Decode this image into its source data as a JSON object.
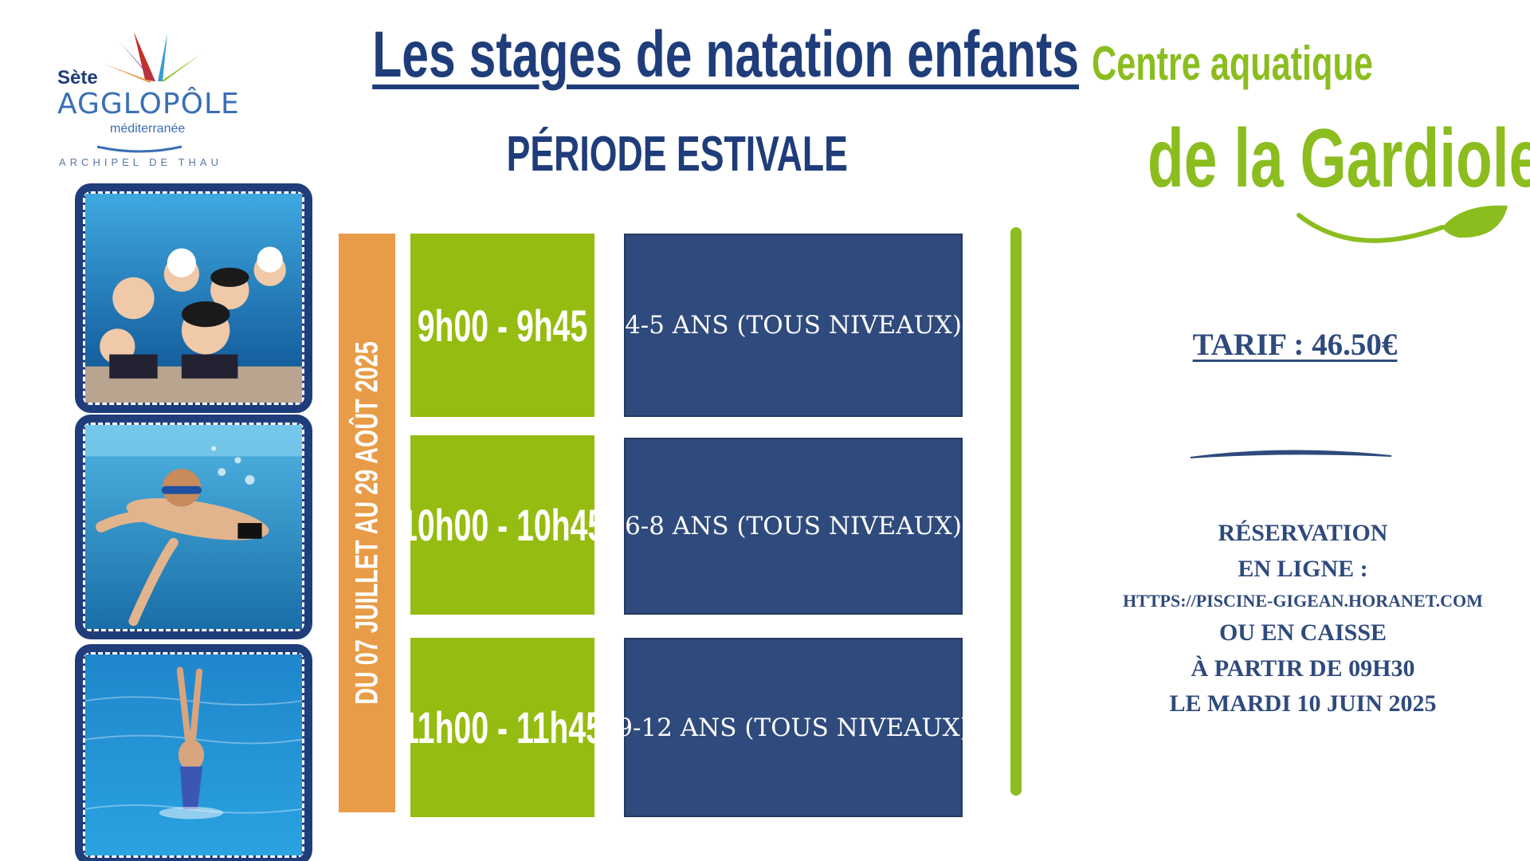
{
  "logo": {
    "city": "Sète",
    "brand": "AGGLOPÔLE",
    "region": "méditerranée",
    "tagline": "ARCHIPEL DE THAU"
  },
  "header": {
    "title": "Les stages de natation enfants",
    "subtitle": "PÉRIODE ESTIVALE"
  },
  "venue": {
    "line1": "Centre aquatique",
    "line2": "de la Gardiole"
  },
  "schedule": {
    "dates": "DU 07 JUILLET AU 29 AOÛT 2025",
    "sessions": [
      {
        "time": "9h00 - 9h45",
        "ages": "4-5 ANS (TOUS NIVEAUX)"
      },
      {
        "time": "10h00 - 10h45",
        "ages": "6-8 ANS (TOUS NIVEAUX)"
      },
      {
        "time": "11h00 - 11h45",
        "ages": "9-12 ANS (TOUS NIVEAUX)"
      }
    ]
  },
  "pricing": {
    "tarif": "TARIF : 46.50€"
  },
  "reservation": {
    "line1": "RÉSERVATION",
    "line2": "EN LIGNE :",
    "url": "HTTPS://PISCINE-GIGEAN.HORANET.COM",
    "line3": "OU EN CAISSE",
    "line4": "À PARTIR DE 09H30",
    "line5": "LE MARDI 10 JUIN 2025"
  },
  "colors": {
    "navy": "#1f3d7a",
    "box_blue": "#2f4a7c",
    "lime": "#95bc10",
    "orange": "#e89c48"
  },
  "photos": [
    {
      "icon": "group-swimmers-photo"
    },
    {
      "icon": "underwater-swimmer-photo"
    },
    {
      "icon": "synchronized-swimmer-photo"
    }
  ]
}
